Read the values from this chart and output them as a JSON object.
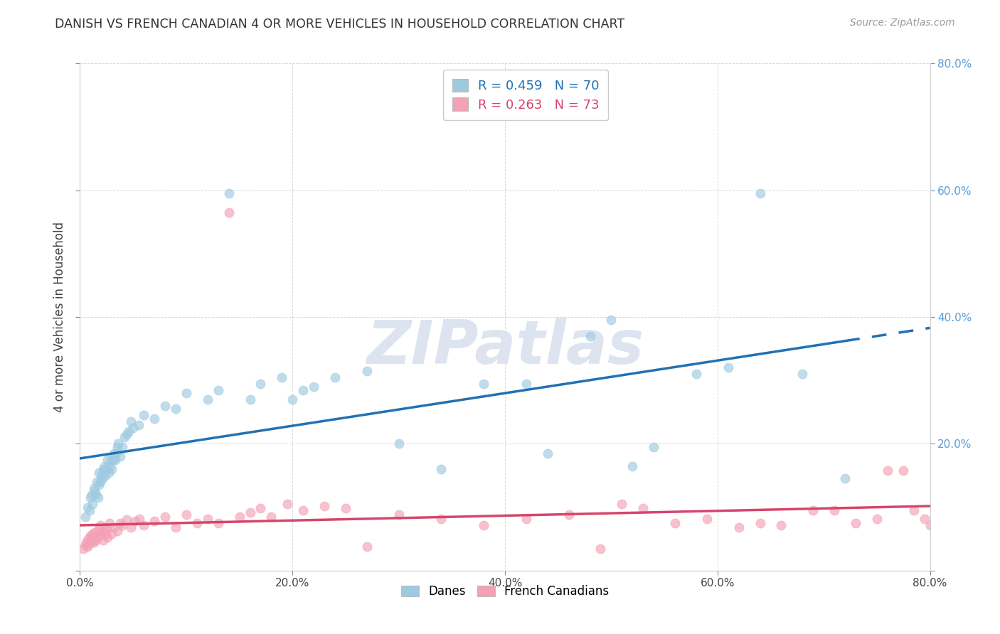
{
  "title": "DANISH VS FRENCH CANADIAN 4 OR MORE VEHICLES IN HOUSEHOLD CORRELATION CHART",
  "source": "Source: ZipAtlas.com",
  "ylabel": "4 or more Vehicles in Household",
  "xlim": [
    0.0,
    0.8
  ],
  "ylim": [
    0.0,
    0.8
  ],
  "xticks": [
    0.0,
    0.2,
    0.4,
    0.6,
    0.8
  ],
  "yticks": [
    0.0,
    0.2,
    0.4,
    0.6,
    0.8
  ],
  "xticklabels": [
    "0.0%",
    "20.0%",
    "40.0%",
    "60.0%",
    "80.0%"
  ],
  "right_yticklabels": [
    "",
    "20.0%",
    "40.0%",
    "60.0%",
    "80.0%"
  ],
  "danish_R": 0.459,
  "danish_N": 70,
  "french_R": 0.263,
  "french_N": 73,
  "danish_color": "#9ecae1",
  "french_color": "#f4a0b5",
  "danish_line_color": "#2171b5",
  "french_line_color": "#d6456c",
  "danish_x": [
    0.005,
    0.007,
    0.009,
    0.01,
    0.011,
    0.012,
    0.013,
    0.014,
    0.015,
    0.016,
    0.017,
    0.018,
    0.018,
    0.019,
    0.02,
    0.021,
    0.022,
    0.022,
    0.023,
    0.024,
    0.025,
    0.026,
    0.027,
    0.028,
    0.029,
    0.03,
    0.031,
    0.032,
    0.033,
    0.034,
    0.035,
    0.036,
    0.038,
    0.04,
    0.042,
    0.044,
    0.046,
    0.048,
    0.05,
    0.055,
    0.06,
    0.07,
    0.08,
    0.09,
    0.1,
    0.12,
    0.13,
    0.14,
    0.16,
    0.17,
    0.19,
    0.2,
    0.21,
    0.22,
    0.24,
    0.27,
    0.3,
    0.34,
    0.38,
    0.42,
    0.44,
    0.48,
    0.5,
    0.52,
    0.54,
    0.58,
    0.61,
    0.64,
    0.68,
    0.72
  ],
  "danish_y": [
    0.085,
    0.1,
    0.095,
    0.115,
    0.12,
    0.105,
    0.13,
    0.125,
    0.12,
    0.14,
    0.115,
    0.135,
    0.155,
    0.14,
    0.15,
    0.145,
    0.16,
    0.155,
    0.165,
    0.15,
    0.16,
    0.175,
    0.155,
    0.165,
    0.175,
    0.16,
    0.175,
    0.185,
    0.175,
    0.185,
    0.195,
    0.2,
    0.18,
    0.195,
    0.21,
    0.215,
    0.22,
    0.235,
    0.225,
    0.23,
    0.245,
    0.24,
    0.26,
    0.255,
    0.28,
    0.27,
    0.285,
    0.595,
    0.27,
    0.295,
    0.305,
    0.27,
    0.285,
    0.29,
    0.305,
    0.315,
    0.2,
    0.16,
    0.295,
    0.295,
    0.185,
    0.37,
    0.395,
    0.165,
    0.195,
    0.31,
    0.32,
    0.595,
    0.31,
    0.145
  ],
  "french_x": [
    0.003,
    0.005,
    0.006,
    0.007,
    0.008,
    0.009,
    0.01,
    0.011,
    0.012,
    0.013,
    0.014,
    0.015,
    0.016,
    0.017,
    0.018,
    0.019,
    0.02,
    0.021,
    0.022,
    0.023,
    0.024,
    0.025,
    0.026,
    0.028,
    0.03,
    0.032,
    0.035,
    0.038,
    0.04,
    0.044,
    0.048,
    0.052,
    0.056,
    0.06,
    0.07,
    0.08,
    0.09,
    0.1,
    0.11,
    0.12,
    0.13,
    0.14,
    0.15,
    0.16,
    0.17,
    0.18,
    0.195,
    0.21,
    0.23,
    0.25,
    0.27,
    0.3,
    0.34,
    0.38,
    0.42,
    0.46,
    0.49,
    0.51,
    0.53,
    0.56,
    0.59,
    0.62,
    0.64,
    0.66,
    0.69,
    0.71,
    0.73,
    0.75,
    0.76,
    0.775,
    0.785,
    0.795,
    0.8
  ],
  "french_y": [
    0.035,
    0.04,
    0.045,
    0.038,
    0.05,
    0.042,
    0.055,
    0.048,
    0.058,
    0.045,
    0.06,
    0.048,
    0.052,
    0.065,
    0.055,
    0.072,
    0.058,
    0.062,
    0.048,
    0.068,
    0.058,
    0.065,
    0.052,
    0.075,
    0.058,
    0.068,
    0.062,
    0.075,
    0.072,
    0.08,
    0.068,
    0.078,
    0.082,
    0.072,
    0.078,
    0.085,
    0.068,
    0.088,
    0.075,
    0.082,
    0.075,
    0.565,
    0.085,
    0.092,
    0.098,
    0.085,
    0.105,
    0.095,
    0.102,
    0.098,
    0.038,
    0.088,
    0.082,
    0.072,
    0.082,
    0.088,
    0.035,
    0.105,
    0.098,
    0.075,
    0.082,
    0.068,
    0.075,
    0.072,
    0.095,
    0.095,
    0.075,
    0.082,
    0.158,
    0.158,
    0.095,
    0.082,
    0.072
  ],
  "background_color": "#ffffff",
  "watermark_text": "ZIPatlas",
  "watermark_color": "#dde4f0",
  "grid_color": "#d0d0d0",
  "right_tick_color": "#5b9bd5",
  "legend_r_color_danish": "#2171b5",
  "legend_r_color_french": "#d6456c"
}
